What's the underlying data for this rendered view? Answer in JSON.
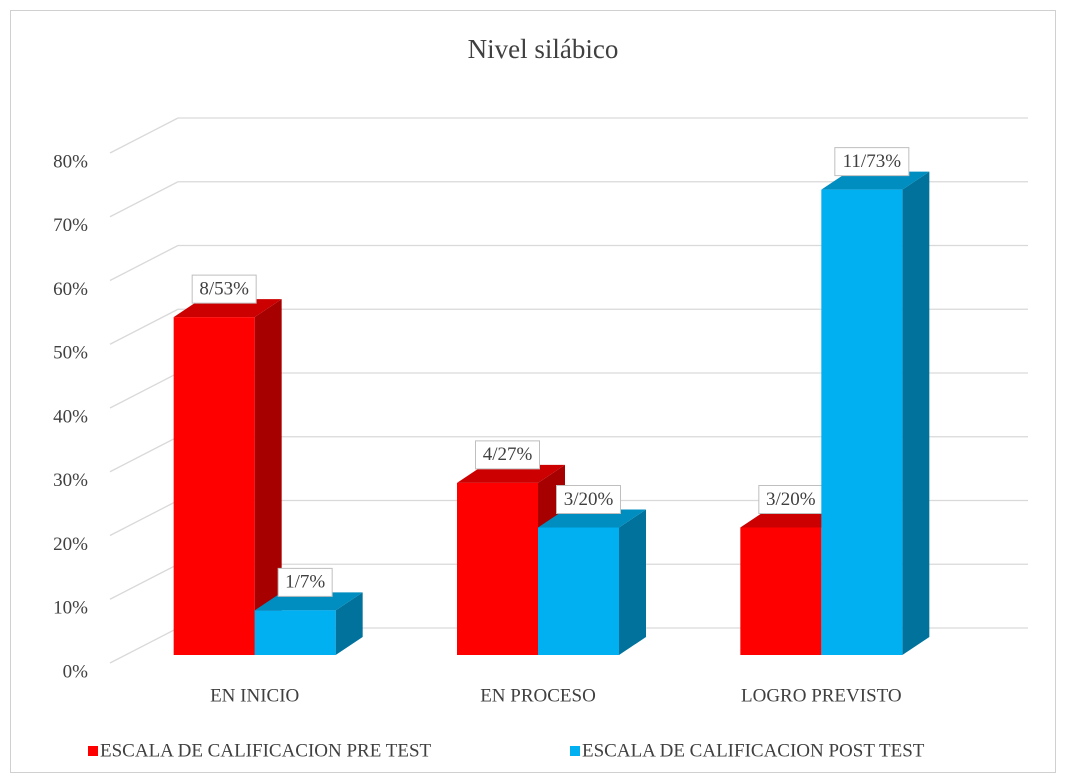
{
  "chart_data": {
    "type": "bar3d",
    "title": "Nivel silábico",
    "categories": [
      "EN INICIO",
      "EN PROCESO",
      "LOGRO PREVISTO"
    ],
    "series": [
      {
        "name": "ESCALA DE CALIFICACION PRE TEST",
        "color": "#ff0000",
        "values": [
          53,
          27,
          20
        ],
        "value_labels": [
          "8/53%",
          "4/27%",
          "3/20%"
        ]
      },
      {
        "name": "ESCALA DE CALIFICACION POST TEST",
        "color": "#00b0f0",
        "values": [
          7,
          20,
          73
        ],
        "value_labels": [
          "1/7%",
          "3/20%",
          "11/73%"
        ]
      }
    ],
    "ylim": [
      0,
      80
    ],
    "yticks": [
      {
        "value": 0,
        "label": "0%"
      },
      {
        "value": 10,
        "label": "10%"
      },
      {
        "value": 20,
        "label": "20%"
      },
      {
        "value": 30,
        "label": "30%"
      },
      {
        "value": 40,
        "label": "40%"
      },
      {
        "value": 50,
        "label": "50%"
      },
      {
        "value": 60,
        "label": "60%"
      },
      {
        "value": 70,
        "label": "70%"
      },
      {
        "value": 80,
        "label": "80%"
      }
    ],
    "grid": true,
    "legend": "bottom"
  }
}
